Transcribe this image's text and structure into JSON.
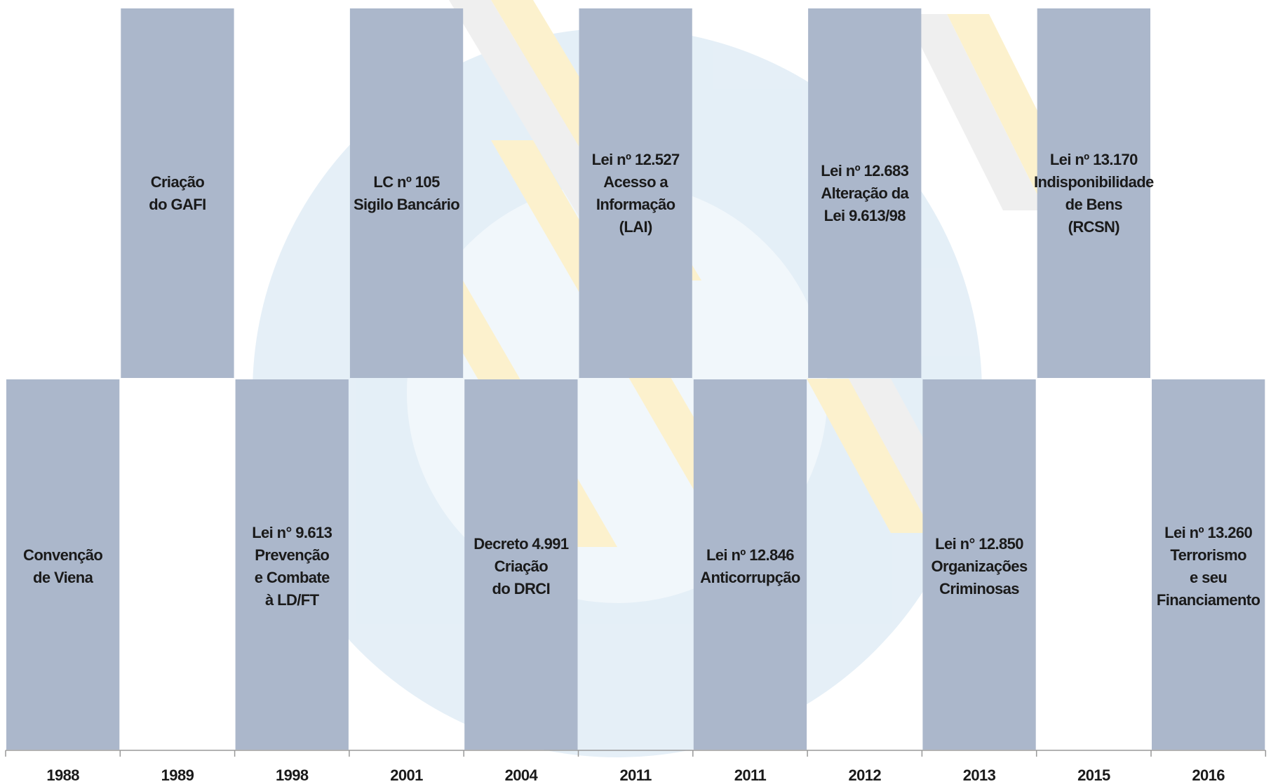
{
  "timeline": {
    "events": [
      {
        "year": "1988",
        "label": [
          "Convenção",
          "de Viena"
        ]
      },
      {
        "year": "1989",
        "label": [
          "Criação",
          "do GAFI"
        ]
      },
      {
        "year": "1998",
        "label": [
          "Lei n° 9.613",
          "Prevenção",
          "e Combate",
          "à LD/FT"
        ]
      },
      {
        "year": "2001",
        "label": [
          "LC nº 105",
          "Sigilo Bancário"
        ]
      },
      {
        "year": "2004",
        "label": [
          "Decreto 4.991",
          "Criação",
          "do DRCI"
        ]
      },
      {
        "year": "2011",
        "label": [
          "Lei nº 12.527",
          "Acesso a",
          "Informação",
          "(LAI)"
        ]
      },
      {
        "year": "2011",
        "label": [
          "Lei nº 12.846",
          "Anticorrupção"
        ]
      },
      {
        "year": "2012",
        "label": [
          "Lei  nº 12.683",
          "Alteração da",
          "Lei 9.613/98"
        ]
      },
      {
        "year": "2013",
        "label": [
          "Lei n° 12.850",
          "Organizações",
          "Criminosas"
        ]
      },
      {
        "year": "2015",
        "label": [
          "Lei nº 13.170",
          "Indisponibilidade",
          "de Bens",
          "(RCSN)"
        ]
      },
      {
        "year": "2016",
        "label": [
          "Lei nº 13.260",
          "Terrorismo",
          "e seu",
          "Financiamento"
        ]
      }
    ]
  }
}
